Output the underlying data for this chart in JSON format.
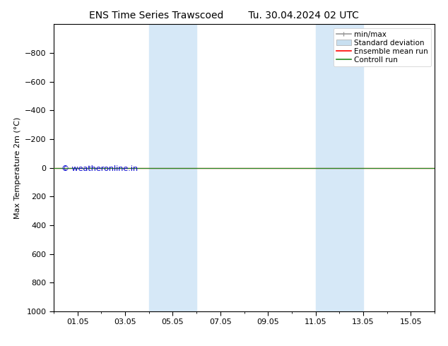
{
  "title_left": "ENS Time Series Trawscoed",
  "title_right": "Tu. 30.04.2024 02 UTC",
  "ylabel": "Max Temperature 2m (°C)",
  "ylim": [
    -1000,
    1000
  ],
  "yticks": [
    -800,
    -600,
    -400,
    -200,
    0,
    200,
    400,
    600,
    800,
    1000
  ],
  "xlim": [
    0,
    16
  ],
  "xtick_labels": [
    "01.05",
    "03.05",
    "05.05",
    "07.05",
    "09.05",
    "11.05",
    "13.05",
    "15.05"
  ],
  "xtick_positions": [
    1,
    3,
    5,
    7,
    9,
    11,
    13,
    15
  ],
  "shaded_regions": [
    {
      "xmin": 4.0,
      "xmax": 6.0
    },
    {
      "xmin": 11.0,
      "xmax": 13.0
    }
  ],
  "shaded_color": "#d6e8f7",
  "horizontal_line_y": 0,
  "line_color_ensemble": "#ff0000",
  "line_color_control": "#228b22",
  "legend_labels": [
    "min/max",
    "Standard deviation",
    "Ensemble mean run",
    "Controll run"
  ],
  "legend_colors_line": [
    "#999999",
    "#c8dff0",
    "#ff0000",
    "#228b22"
  ],
  "watermark": "© weatheronline.in",
  "watermark_color": "#0000cc",
  "bg_color": "#ffffff",
  "plot_bg_color": "#ffffff",
  "border_color": "#000000",
  "font_size_title": 10,
  "font_size_axis": 8,
  "font_size_legend": 7.5,
  "font_size_watermark": 8
}
